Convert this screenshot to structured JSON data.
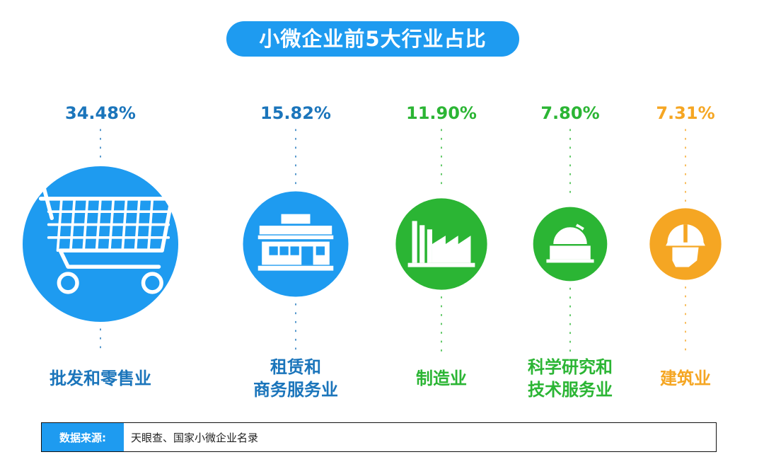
{
  "title": "小微企业前5大行业占比",
  "chart_data": {
    "type": "bubble",
    "unit": "%",
    "categories": [
      "批发和零售业",
      "租赁和\n商务服务业",
      "制造业",
      "科学研究和\n技术服务业",
      "建筑业"
    ],
    "values": [
      34.48,
      15.82,
      11.9,
      7.8,
      7.31
    ],
    "value_labels": [
      "34.48%",
      "15.82%",
      "11.90%",
      "7.80%",
      "7.31%"
    ],
    "colors": [
      "#1e9bf0",
      "#1e9bf0",
      "#2bb534",
      "#2bb534",
      "#f5a623"
    ],
    "label_colors": [
      "#1b75bb",
      "#1b75bb",
      "#2bb534",
      "#2bb534",
      "#f5a623"
    ],
    "icons": [
      "shopping-cart-icon",
      "storefront-icon",
      "factory-icon",
      "observatory-icon",
      "hardhat-worker-icon"
    ]
  },
  "source": {
    "label": "数据来源:",
    "text": "天眼查、国家小微企业名录"
  }
}
